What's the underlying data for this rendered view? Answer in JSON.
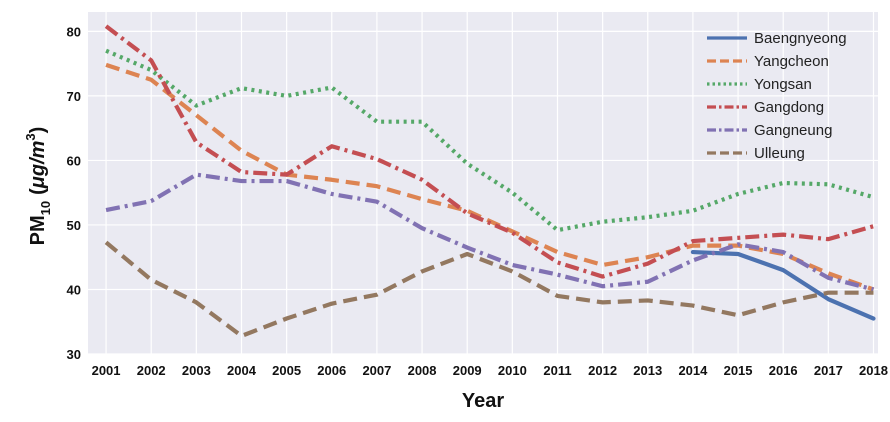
{
  "chart_data": {
    "type": "line",
    "xlabel": "Year",
    "ylabel": "PM10 (μg/m3)",
    "ylabel_parts": {
      "pm": "PM",
      "sub": "10",
      "open": "(",
      "unit": "μg/m",
      "sup": "3",
      "close": ")"
    },
    "x": [
      2001,
      2002,
      2003,
      2004,
      2005,
      2006,
      2007,
      2008,
      2009,
      2010,
      2011,
      2012,
      2013,
      2014,
      2015,
      2016,
      2017,
      2018
    ],
    "x_labels": [
      "2001",
      "2002",
      "2003",
      "2004",
      "2005",
      "2006",
      "2007",
      "2008",
      "2009",
      "2010",
      "2011",
      "2012",
      "2013",
      "2014",
      "2015",
      "2016",
      "2017",
      "2018"
    ],
    "xlim": [
      2000.6,
      2018.1
    ],
    "ylim": [
      30,
      83
    ],
    "yticks": [
      30,
      40,
      50,
      60,
      70,
      80
    ],
    "grid": true,
    "legend_position": "top-right",
    "series": [
      {
        "name": "Baengnyeong",
        "color": "#4C72B0",
        "dash": "solid",
        "values": [
          null,
          null,
          null,
          null,
          null,
          null,
          null,
          null,
          null,
          null,
          null,
          null,
          null,
          45.8,
          45.5,
          43.0,
          38.5,
          35.5
        ]
      },
      {
        "name": "Yangcheon",
        "color": "#DD8452",
        "dash": "dashed",
        "values": [
          74.8,
          72.5,
          67.0,
          61.5,
          57.8,
          57.0,
          56.0,
          54.0,
          52.2,
          49.0,
          45.8,
          43.8,
          45.0,
          46.8,
          46.8,
          45.5,
          42.5,
          40.0
        ]
      },
      {
        "name": "Yongsan",
        "color": "#55A868",
        "dash": "dotted",
        "values": [
          77.0,
          74.0,
          68.5,
          71.2,
          70.0,
          71.3,
          66.0,
          66.0,
          59.5,
          55.0,
          49.2,
          50.5,
          51.2,
          52.2,
          54.8,
          56.5,
          56.3,
          54.3
        ]
      },
      {
        "name": "Gangdong",
        "color": "#C44E52",
        "dash": "dashdot",
        "values": [
          80.8,
          75.5,
          62.8,
          58.2,
          57.8,
          62.2,
          60.2,
          57.0,
          51.8,
          48.8,
          44.2,
          42.0,
          44.0,
          47.5,
          48.0,
          48.5,
          47.8,
          49.8
        ]
      },
      {
        "name": "Gangneung",
        "color": "#8172B3",
        "dash": "dashdot",
        "values": [
          52.3,
          53.7,
          57.8,
          56.8,
          56.8,
          54.8,
          53.6,
          49.5,
          46.5,
          43.8,
          42.3,
          40.5,
          41.2,
          44.5,
          47.0,
          45.8,
          41.8,
          40.0
        ]
      },
      {
        "name": "Ulleung",
        "color": "#937860",
        "dash": "dashed",
        "values": [
          47.3,
          41.5,
          38.0,
          32.8,
          35.5,
          37.8,
          39.2,
          42.8,
          45.5,
          42.8,
          39.0,
          38.0,
          38.3,
          37.5,
          36.0,
          38.0,
          39.5,
          39.5
        ]
      }
    ]
  }
}
